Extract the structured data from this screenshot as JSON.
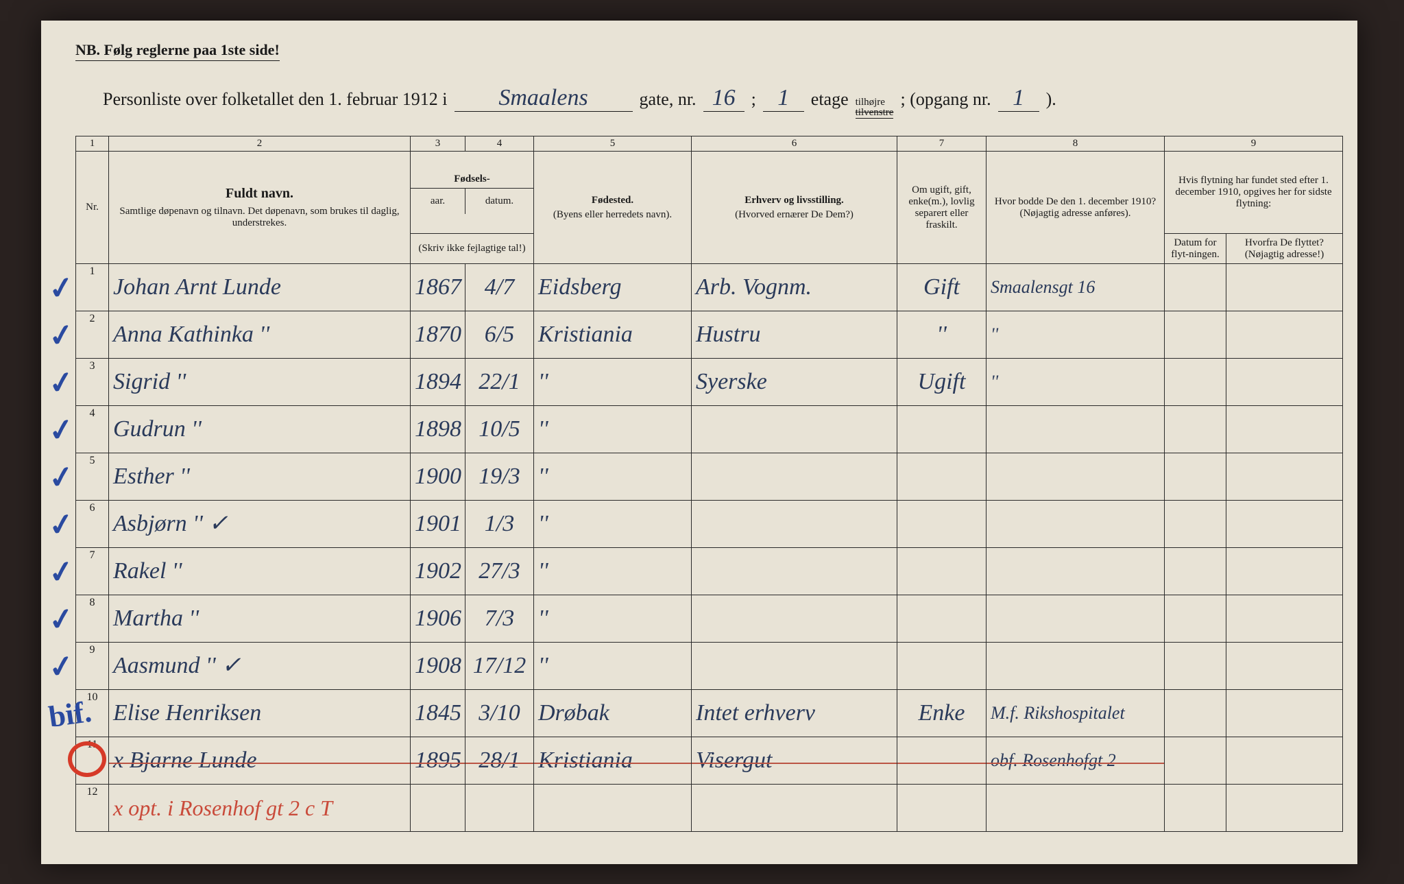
{
  "header": {
    "nb": "NB.   Følg reglerne paa 1ste side!",
    "title_lead": "Personliste over folketallet den 1. februar 1912 i",
    "street": "Smaalens",
    "gate_label": "gate, nr.",
    "gate_nr": "16",
    "semicolon": ";",
    "etage_nr": "1",
    "etage_label": "etage",
    "tilhojre": "tilhøjre",
    "tilvenstre": "tilvenstre",
    "opgang_label": "; (opgang nr.",
    "opgang_nr": "1",
    "closing": ")."
  },
  "columns": {
    "c1": "1",
    "c2": "2",
    "c3": "3",
    "c4": "4",
    "c5": "5",
    "c6": "6",
    "c7": "7",
    "c8": "8",
    "c9": "9",
    "nr": "Nr.",
    "name_hdr": "Fuldt navn.",
    "name_sub": "Samtlige døpenavn og tilnavn. Det døpenavn, som brukes til daglig, understrekes.",
    "fodsels": "Fødsels-",
    "aar": "aar.",
    "datum": "datum.",
    "skriv": "(Skriv ikke fejlagtige tal!)",
    "fodested": "Fødested.",
    "fodested_sub": "(Byens eller herredets navn).",
    "erhverv": "Erhverv og livsstilling.",
    "erhverv_sub": "(Hvorved ernærer De Dem?)",
    "status": "Om ugift, gift, enke(m.), lovlig separert eller fraskilt.",
    "addr1910": "Hvor bodde De den 1. december 1910?",
    "addr1910_sub": "(Nøjagtig adresse anføres).",
    "flyt_hdr": "Hvis flytning har fundet sted efter 1. december 1910, opgives her for sidste flytning:",
    "flyt_date": "Datum for flyt-ningen.",
    "flyt_from": "Hvorfra De flyttet? (Nøjagtig adresse!)"
  },
  "rows": [
    {
      "nr": "1",
      "chk": "✓",
      "name": "Johan Arnt Lunde",
      "yr": "1867",
      "date": "4/7",
      "place": "Eidsberg",
      "occ": "Arb. Vognm.",
      "status": "Gift",
      "addr": "Smaalensgt 16"
    },
    {
      "nr": "2",
      "chk": "✓",
      "name": "Anna Kathinka  ''",
      "yr": "1870",
      "date": "6/5",
      "place": "Kristiania",
      "occ": "Hustru",
      "status": "''",
      "addr": "''"
    },
    {
      "nr": "3",
      "chk": "✓",
      "name": "Sigrid          ''",
      "yr": "1894",
      "date": "22/1",
      "place": "''",
      "occ": "Syerske",
      "status": "Ugift",
      "addr": "''"
    },
    {
      "nr": "4",
      "chk": "✓",
      "name": "Gudrun         ''",
      "yr": "1898",
      "date": "10/5",
      "place": "''",
      "occ": "",
      "status": "",
      "addr": ""
    },
    {
      "nr": "5",
      "chk": "✓",
      "name": "Esther          ''",
      "yr": "1900",
      "date": "19/3",
      "place": "''",
      "occ": "",
      "status": "",
      "addr": ""
    },
    {
      "nr": "6",
      "chk": "✓",
      "name": "Asbjørn        ''  ✓",
      "yr": "1901",
      "date": "1/3",
      "place": "''",
      "occ": "",
      "status": "",
      "addr": ""
    },
    {
      "nr": "7",
      "chk": "✓",
      "name": "Rakel           ''",
      "yr": "1902",
      "date": "27/3",
      "place": "''",
      "occ": "",
      "status": "",
      "addr": ""
    },
    {
      "nr": "8",
      "chk": "✓",
      "name": "Martha         ''",
      "yr": "1906",
      "date": "7/3",
      "place": "''",
      "occ": "",
      "status": "",
      "addr": ""
    },
    {
      "nr": "9",
      "chk": "✓",
      "name": "Aasmund      ''  ✓",
      "yr": "1908",
      "date": "17/12",
      "place": "''",
      "occ": "",
      "status": "",
      "addr": ""
    },
    {
      "nr": "10",
      "chk": "bif.",
      "name": "Elise Henriksen",
      "yr": "1845",
      "date": "3/10",
      "place": "Drøbak",
      "occ": "Intet erhverv",
      "status": "Enke",
      "addr": "M.f. Rikshospitalet"
    },
    {
      "nr": "11",
      "chk": "",
      "name": "x  Bjarne Lunde",
      "yr": "1895",
      "date": "28/1",
      "place": "Kristiania",
      "occ": "Visergut",
      "status": "",
      "addr": "obf. Rosenhofgt 2",
      "struck": true,
      "circled": true
    },
    {
      "nr": "12",
      "chk": "",
      "name": "x opt. i Rosenhof gt 2 c  T",
      "yr": "",
      "date": "",
      "place": "",
      "occ": "",
      "status": "",
      "addr": "",
      "red": true
    }
  ],
  "colors": {
    "paper": "#e8e3d6",
    "ink_print": "#1a1a1a",
    "ink_hand": "#2a3a5a",
    "ink_red": "#c94a3a",
    "check_blue": "#2a4aa0",
    "circle_red": "#d63a28",
    "background": "#2a2220"
  }
}
